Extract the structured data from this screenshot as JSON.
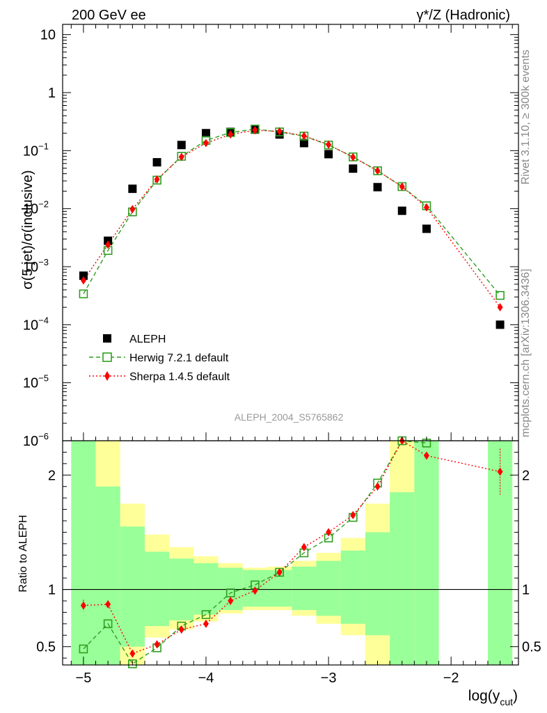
{
  "header": {
    "left_title": "200 GeV ee",
    "right_title": "γ*/Z (Hadronic)"
  },
  "side_labels": {
    "rivet": "Rivet 3.1.10, ≥ 300k events",
    "mcplots": "mcplots.cern.ch [arXiv:1306.3436]"
  },
  "analysis_label": "ALEPH_2004_S5765862",
  "chart_data": [
    {
      "type": "scatter",
      "title": "",
      "ylabel": "σ(5 jet)/σ(inclusive)",
      "xlabel": "",
      "yscale": "log",
      "ylim": [
        1e-06,
        15
      ],
      "xlim": [
        -5.17,
        -1.45
      ],
      "yticks": [
        {
          "value": 10,
          "label": "10",
          "exp": ""
        },
        {
          "value": 1,
          "label": "1",
          "exp": ""
        },
        {
          "value": 0.1,
          "label": "10",
          "exp": "−1"
        },
        {
          "value": 0.01,
          "label": "10",
          "exp": "−2"
        },
        {
          "value": 0.001,
          "label": "10",
          "exp": "−3"
        },
        {
          "value": 0.0001,
          "label": "10",
          "exp": "−4"
        },
        {
          "value": 1e-05,
          "label": "10",
          "exp": "−5"
        },
        {
          "value": 1e-06,
          "label": "10",
          "exp": "−6"
        }
      ],
      "legend": [
        {
          "name": "ALEPH",
          "style": "black-square"
        },
        {
          "name": "Herwig 7.2.1 default",
          "style": "green-open-square-dashed"
        },
        {
          "name": "Sherpa 1.4.5 default",
          "style": "red-diamond-dotted"
        }
      ],
      "series": [
        {
          "name": "ALEPH",
          "color": "#000000",
          "x": [
            -5.0,
            -4.8,
            -4.6,
            -4.4,
            -4.2,
            -4.0,
            -3.8,
            -3.6,
            -3.4,
            -3.2,
            -3.0,
            -2.8,
            -2.6,
            -2.4,
            -2.2,
            -1.6
          ],
          "y": [
            0.0007,
            0.0028,
            0.022,
            0.063,
            0.125,
            0.2,
            0.21,
            0.23,
            0.19,
            0.135,
            0.087,
            0.049,
            0.0235,
            0.0092,
            0.0045,
            0.0001
          ]
        },
        {
          "name": "Herwig 7.2.1 default",
          "color": "#2e9e1e",
          "x": [
            -5.0,
            -4.8,
            -4.6,
            -4.4,
            -4.2,
            -4.0,
            -3.8,
            -3.6,
            -3.4,
            -3.2,
            -3.0,
            -2.8,
            -2.6,
            -2.4,
            -2.2,
            -1.6
          ],
          "y": [
            0.00034,
            0.0019,
            0.0088,
            0.031,
            0.08,
            0.15,
            0.205,
            0.235,
            0.21,
            0.178,
            0.125,
            0.078,
            0.045,
            0.024,
            0.0112,
            0.00032
          ]
        },
        {
          "name": "Sherpa 1.4.5 default",
          "color": "#ff0000",
          "x": [
            -5.0,
            -4.8,
            -4.6,
            -4.4,
            -4.2,
            -4.0,
            -3.8,
            -3.6,
            -3.4,
            -3.2,
            -3.0,
            -2.8,
            -2.6,
            -2.4,
            -2.2,
            -1.6
          ],
          "y": [
            0.00058,
            0.0024,
            0.0098,
            0.032,
            0.078,
            0.135,
            0.19,
            0.225,
            0.215,
            0.18,
            0.127,
            0.077,
            0.045,
            0.024,
            0.0105,
            0.0002
          ]
        }
      ]
    },
    {
      "type": "scatter",
      "title": "",
      "ylabel": "Ratio to ALEPH",
      "xlabel": "log(y",
      "xlabel_sub": "cut",
      "xlabel_close": ")",
      "ylim": [
        0.34,
        2.3
      ],
      "xlim": [
        -5.17,
        -1.45
      ],
      "yticks": [
        {
          "value": 2,
          "label": "2"
        },
        {
          "value": 1,
          "label": "1"
        },
        {
          "value": 0.5,
          "label": "0.5"
        }
      ],
      "xticks": [
        {
          "value": -5,
          "label": "−5"
        },
        {
          "value": -4,
          "label": "−4"
        },
        {
          "value": -3,
          "label": "−3"
        },
        {
          "value": -2,
          "label": "−2"
        }
      ],
      "bands": [
        {
          "x0": -5.1,
          "x1": -4.9,
          "stat": [
            0.34,
            2.3
          ],
          "tot": [
            0.34,
            2.3
          ]
        },
        {
          "x0": -4.9,
          "x1": -4.7,
          "stat": [
            0.34,
            1.9
          ],
          "tot": [
            0.34,
            2.3
          ]
        },
        {
          "x0": -4.7,
          "x1": -4.5,
          "stat": [
            0.5,
            1.55
          ],
          "tot": [
            0.34,
            1.75
          ]
        },
        {
          "x0": -4.5,
          "x1": -4.3,
          "stat": [
            0.68,
            1.33
          ],
          "tot": [
            0.58,
            1.48
          ]
        },
        {
          "x0": -4.3,
          "x1": -4.1,
          "stat": [
            0.73,
            1.27
          ],
          "tot": [
            0.65,
            1.37
          ]
        },
        {
          "x0": -4.1,
          "x1": -3.9,
          "stat": [
            0.78,
            1.23
          ],
          "tot": [
            0.72,
            1.29
          ]
        },
        {
          "x0": -3.9,
          "x1": -3.7,
          "stat": [
            0.82,
            1.19
          ],
          "tot": [
            0.79,
            1.23
          ]
        },
        {
          "x0": -3.7,
          "x1": -3.5,
          "stat": [
            0.85,
            1.17
          ],
          "tot": [
            0.82,
            1.19
          ]
        },
        {
          "x0": -3.5,
          "x1": -3.3,
          "stat": [
            0.85,
            1.17
          ],
          "tot": [
            0.82,
            1.2
          ]
        },
        {
          "x0": -3.3,
          "x1": -3.1,
          "stat": [
            0.82,
            1.2
          ],
          "tot": [
            0.77,
            1.25
          ]
        },
        {
          "x0": -3.1,
          "x1": -2.9,
          "stat": [
            0.77,
            1.25
          ],
          "tot": [
            0.7,
            1.32
          ]
        },
        {
          "x0": -2.9,
          "x1": -2.7,
          "stat": [
            0.7,
            1.34
          ],
          "tot": [
            0.6,
            1.45
          ]
        },
        {
          "x0": -2.7,
          "x1": -2.5,
          "stat": [
            0.6,
            1.5
          ],
          "tot": [
            0.34,
            1.75
          ]
        },
        {
          "x0": -2.5,
          "x1": -2.3,
          "stat": [
            0.34,
            1.85
          ],
          "tot": [
            0.34,
            2.3
          ]
        },
        {
          "x0": -2.3,
          "x1": -2.1,
          "stat": [
            0.34,
            2.3
          ],
          "tot": [
            0.34,
            2.3
          ]
        },
        {
          "x0": -1.7,
          "x1": -1.5,
          "stat": [
            0.34,
            2.3
          ],
          "tot": [
            0.34,
            2.3
          ]
        }
      ],
      "series": [
        {
          "name": "Herwig 7.2.1 default",
          "color": "#2e9e1e",
          "x": [
            -5.0,
            -4.8,
            -4.6,
            -4.4,
            -4.2,
            -4.0,
            -3.8,
            -3.6,
            -3.4,
            -3.2,
            -3.0,
            -2.8,
            -2.6,
            -2.4,
            -2.2
          ],
          "y": [
            0.48,
            0.7,
            0.35,
            0.49,
            0.68,
            0.78,
            0.97,
            1.04,
            1.15,
            1.32,
            1.45,
            1.63,
            1.93,
            2.3,
            2.28
          ]
        },
        {
          "name": "Sherpa 1.4.5 default",
          "color": "#ff0000",
          "x": [
            -5.0,
            -4.8,
            -4.6,
            -4.4,
            -4.2,
            -4.0,
            -3.8,
            -3.6,
            -3.4,
            -3.2,
            -3.0,
            -2.8,
            -2.6,
            -2.4,
            -2.2,
            -1.6
          ],
          "y": [
            0.86,
            0.87,
            0.44,
            0.52,
            0.65,
            0.7,
            0.9,
            0.99,
            1.15,
            1.37,
            1.5,
            1.65,
            1.9,
            2.3,
            2.17,
            2.03
          ],
          "yerr": [
            0.05,
            0.0,
            0.0,
            0.0,
            0.0,
            0.0,
            0.0,
            0.0,
            0.0,
            0.0,
            0.0,
            0.0,
            0.0,
            0.0,
            0.0,
            0.2
          ]
        }
      ]
    }
  ],
  "colors": {
    "stat_band": "#99ff99",
    "total_band": "#ffff99",
    "herwig": "#2e9e1e",
    "sherpa": "#ff0000"
  }
}
